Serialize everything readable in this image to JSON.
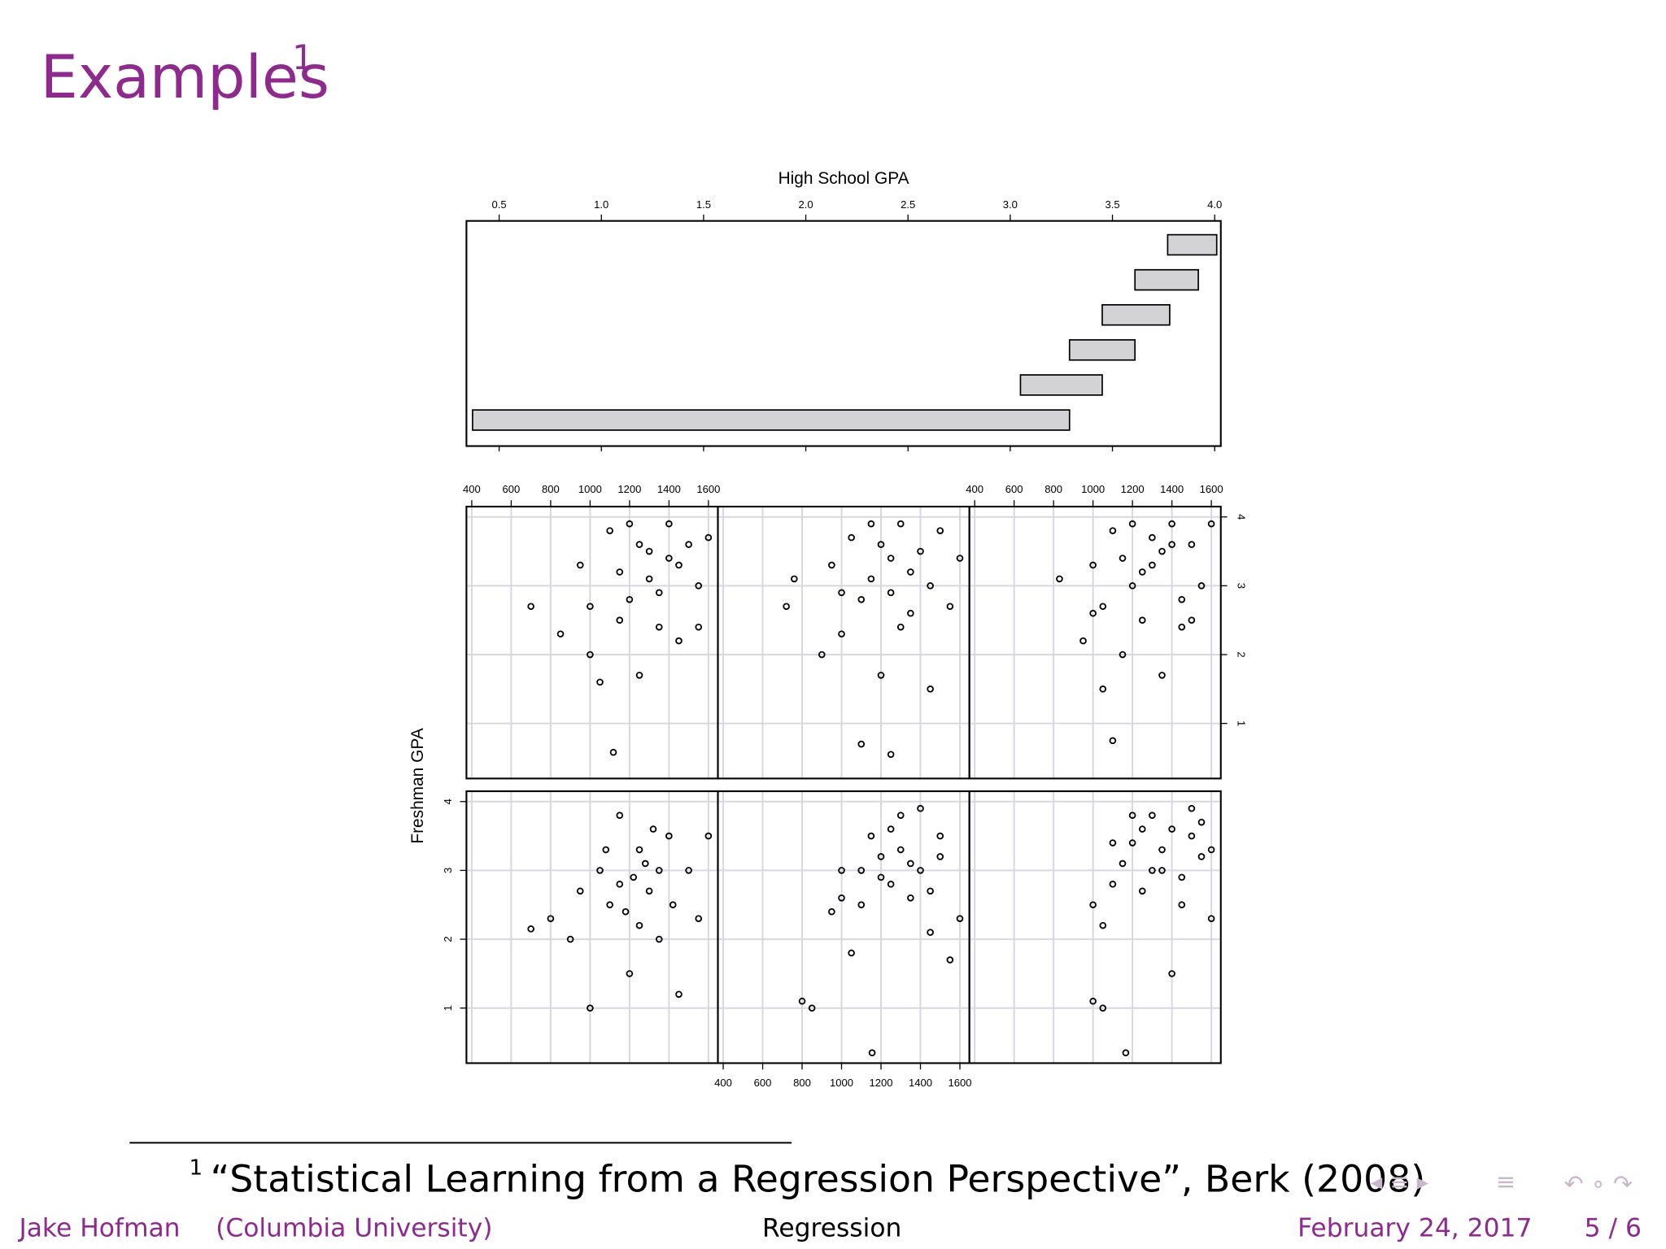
{
  "slide": {
    "title": "Examples",
    "title_note": "1"
  },
  "chart_data": {
    "type": "coplot",
    "given": {
      "label": "High School GPA",
      "xlim": [
        0.34,
        4.03
      ],
      "xticks": [
        0.5,
        {
          "value": 1,
          "label": "1.0"
        },
        1.5,
        {
          "value": 2,
          "label": "2.0"
        },
        2.5,
        {
          "value": 3,
          "label": "3.0"
        },
        3.5,
        {
          "value": 4,
          "label": "4.0"
        }
      ],
      "intervals": [
        [
          0.37,
          3.29
        ],
        [
          3.05,
          3.45
        ],
        [
          3.29,
          3.61
        ],
        [
          3.45,
          3.78
        ],
        [
          3.61,
          3.92
        ],
        [
          3.77,
          4.01
        ]
      ],
      "color": "#d3d3d6"
    },
    "ylabel": "Freshman GPA",
    "xlim": [
      373,
      1648
    ],
    "xticks": [
      400,
      600,
      800,
      1000,
      1200,
      1400,
      1600
    ],
    "ylim": [
      0.2,
      4.15
    ],
    "yticks": [
      1,
      2,
      3,
      4
    ],
    "grid": true,
    "color": "#000000",
    "panels": [
      {
        "x": [
          700,
          800,
          900,
          1000,
          1050,
          1100,
          1150,
          1200,
          1250,
          1300,
          1350,
          1400,
          1450,
          1500,
          1550,
          1600,
          1150,
          1250,
          1350,
          950,
          1080,
          1220,
          1320,
          1420,
          1180,
          1280
        ],
        "y": [
          2.15,
          2.3,
          2.0,
          1.0,
          3.0,
          2.5,
          3.8,
          1.5,
          3.3,
          2.7,
          2.0,
          3.5,
          1.2,
          3.0,
          2.3,
          3.5,
          2.8,
          2.2,
          3.0,
          2.7,
          3.3,
          2.9,
          3.6,
          2.5,
          2.4,
          3.1
        ]
      },
      {
        "x": [
          800,
          850,
          1155,
          1000,
          1100,
          1200,
          1300,
          1350,
          1400,
          1450,
          1500,
          1550,
          1250,
          1150,
          1050,
          1600,
          950,
          1400,
          1300,
          1200,
          1350,
          1250,
          1450,
          1100,
          1000,
          1500
        ],
        "y": [
          1.1,
          1.0,
          0.35,
          3.0,
          2.5,
          3.2,
          3.8,
          2.6,
          3.0,
          2.1,
          3.5,
          1.7,
          2.8,
          3.5,
          1.8,
          2.3,
          2.4,
          3.9,
          3.3,
          2.9,
          3.1,
          3.6,
          2.7,
          3.0,
          2.6,
          3.2
        ]
      },
      {
        "x": [
          1000,
          1050,
          1166,
          1100,
          1200,
          1300,
          1400,
          1450,
          1500,
          1550,
          1600,
          1350,
          1250,
          1150,
          1050,
          1400,
          1500,
          1300,
          1200,
          1450,
          1350,
          1550,
          1250,
          1100,
          1600,
          1000
        ],
        "y": [
          1.1,
          1.0,
          0.35,
          3.4,
          3.8,
          3.0,
          3.6,
          2.5,
          3.9,
          3.2,
          2.3,
          3.3,
          2.7,
          3.1,
          2.2,
          1.5,
          3.5,
          3.8,
          3.4,
          2.9,
          3.0,
          3.7,
          3.6,
          2.8,
          3.3,
          2.5
        ]
      },
      {
        "x": [
          700,
          1118,
          850,
          950,
          1000,
          1050,
          1100,
          1150,
          1200,
          1250,
          1300,
          1350,
          1400,
          1450,
          1500,
          1550,
          1600,
          1150,
          1250,
          1350,
          1450,
          1200,
          1300,
          1400,
          1000,
          1550
        ],
        "y": [
          2.7,
          0.58,
          2.3,
          3.3,
          2.0,
          1.6,
          3.8,
          2.5,
          3.9,
          1.7,
          3.5,
          2.9,
          3.9,
          2.2,
          3.6,
          3.0,
          3.7,
          3.2,
          3.6,
          2.4,
          3.3,
          2.8,
          3.1,
          3.4,
          2.7,
          2.4
        ]
      },
      {
        "x": [
          720,
          760,
          1100,
          1250,
          900,
          950,
          1000,
          1050,
          1100,
          1150,
          1200,
          1250,
          1300,
          1350,
          1400,
          1450,
          1500,
          1550,
          1600,
          1150,
          1250,
          1350,
          1450,
          1000,
          1200,
          1300
        ],
        "y": [
          2.7,
          3.1,
          0.7,
          0.55,
          2.0,
          3.3,
          2.3,
          3.7,
          2.8,
          3.9,
          1.7,
          3.4,
          3.9,
          2.6,
          3.5,
          1.5,
          3.8,
          2.7,
          3.4,
          3.1,
          2.9,
          3.2,
          3.0,
          2.9,
          3.6,
          2.4
        ]
      },
      {
        "x": [
          830,
          1100,
          1050,
          950,
          1000,
          1050,
          1100,
          1150,
          1200,
          1250,
          1300,
          1350,
          1400,
          1450,
          1500,
          1550,
          1600,
          1150,
          1250,
          1350,
          1450,
          1200,
          1300,
          1400,
          1000,
          1500
        ],
        "y": [
          3.1,
          0.75,
          1.5,
          2.2,
          3.3,
          2.7,
          3.8,
          2.0,
          3.9,
          2.5,
          3.7,
          1.7,
          3.9,
          2.4,
          3.6,
          3.0,
          3.9,
          3.4,
          3.2,
          3.5,
          2.8,
          3.0,
          3.3,
          3.6,
          2.6,
          2.5
        ]
      }
    ]
  },
  "footnote": {
    "marker": "1",
    "text": "“Statistical Learning from a Regression Perspective”, Berk (2008)"
  },
  "footer": {
    "author": "Jake Hofman",
    "institution": "(Columbia University)",
    "subject": "Regression",
    "date": "February 24, 2017",
    "page": "5 / 6"
  }
}
